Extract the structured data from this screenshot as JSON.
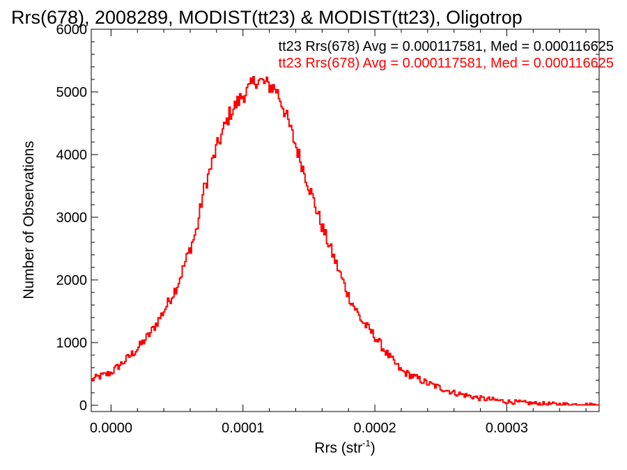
{
  "chart_data": {
    "type": "line",
    "title": "Rrs(678), 2008289, MODIST(tt23) & MODIST(tt23), Oligotrop",
    "xlabel_main": "Rrs (str",
    "xlabel_sup": "-1",
    "xlabel_end": ")",
    "ylabel": "Number of Observations",
    "xlim": [
      -1.5e-05,
      0.00037
    ],
    "ylim": [
      -100,
      6000
    ],
    "xticks": [
      0.0,
      0.0001,
      0.0002,
      0.0003
    ],
    "xtick_labels": [
      "0.0000",
      "0.0001",
      "0.0002",
      "0.0003"
    ],
    "yticks": [
      0,
      1000,
      2000,
      3000,
      4000,
      5000,
      6000
    ],
    "ytick_labels": [
      "0",
      "1000",
      "2000",
      "3000",
      "4000",
      "5000",
      "6000"
    ],
    "legend": [
      {
        "text": "tt23 Rrs(678) Avg = 0.000117581, Med = 0.000116625",
        "color": "#000000"
      },
      {
        "text": "tt23 Rrs(678) Avg = 0.000117581, Med = 0.000116625",
        "color": "#ff0000"
      }
    ],
    "series": [
      {
        "color": "#ff0000",
        "x": [
          -1.5e-05,
          -1e-05,
          -5e-06,
          0.0,
          1e-05,
          2e-05,
          3e-05,
          4e-05,
          5e-05,
          6e-05,
          6.5e-05,
          7e-05,
          8e-05,
          9e-05,
          0.0001,
          0.000105,
          0.00011,
          0.000115,
          0.00012,
          0.000125,
          0.00013,
          0.00014,
          0.00015,
          0.00016,
          0.00017,
          0.00018,
          0.00019,
          0.0002,
          0.00021,
          0.00022,
          0.00024,
          0.00026,
          0.00028,
          0.0003,
          0.00032,
          0.00034,
          0.00036,
          0.00037
        ],
        "y": [
          400,
          450,
          480,
          520,
          700,
          900,
          1150,
          1500,
          1900,
          2500,
          2800,
          3400,
          4100,
          4650,
          4950,
          5050,
          5200,
          5150,
          5100,
          5050,
          4800,
          4150,
          3500,
          2850,
          2300,
          1750,
          1350,
          1100,
          800,
          550,
          350,
          200,
          110,
          60,
          30,
          15,
          10,
          5
        ]
      }
    ]
  }
}
